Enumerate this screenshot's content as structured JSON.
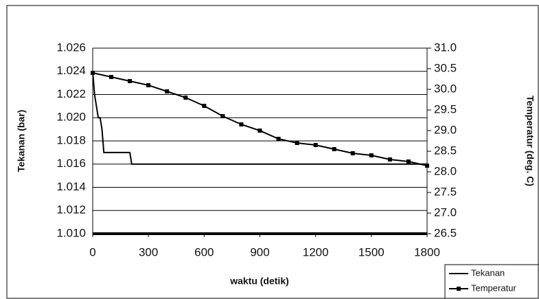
{
  "chart_data": {
    "type": "line",
    "xlabel": "waktu (detik)",
    "ylabel": "Tekanan (bar)",
    "y2label": "Temperatur (deg. C)",
    "xlim": [
      0,
      1800
    ],
    "xticks": [
      0,
      300,
      600,
      900,
      1200,
      1500,
      1800
    ],
    "ylim": [
      1.01,
      1.026
    ],
    "yticks": [
      {
        "value": 1.01,
        "label": "1.010"
      },
      1.012,
      1.014,
      1.016,
      1.018,
      {
        "value": 1.02,
        "label": "1.020"
      },
      1.022,
      1.024,
      1.026
    ],
    "y2lim": [
      26.5,
      31.0
    ],
    "y2ticks": [
      26.5,
      {
        "value": 27.0,
        "label": "27.0"
      },
      27.5,
      {
        "value": 28.0,
        "label": "28.0"
      },
      28.5,
      {
        "value": 29.0,
        "label": "29.0"
      },
      29.5,
      {
        "value": 30.0,
        "label": "30.0"
      },
      30.5,
      {
        "value": 31.0,
        "label": "31.0"
      }
    ],
    "grid": true,
    "legend": "lower right",
    "series": [
      {
        "name": "Tekanan",
        "color": "#000000",
        "marker": "none",
        "x": [
          0,
          10,
          20,
          30,
          40,
          50,
          60,
          200,
          210,
          1800
        ],
        "values": [
          1.024,
          1.022,
          1.021,
          1.02,
          1.02,
          1.019,
          1.017,
          1.017,
          1.016,
          1.016
        ]
      },
      {
        "name": "Temperatur",
        "color": "#000000",
        "marker": "square",
        "axis": "y2",
        "x": [
          0,
          100,
          200,
          300,
          400,
          500,
          600,
          700,
          800,
          900,
          1000,
          1100,
          1200,
          1300,
          1400,
          1500,
          1600,
          1700,
          1800
        ],
        "values": [
          30.4,
          30.3,
          30.2,
          30.1,
          29.95,
          29.8,
          29.6,
          29.35,
          29.15,
          29.0,
          28.8,
          28.7,
          28.65,
          28.55,
          28.45,
          28.4,
          28.3,
          28.25,
          28.15
        ]
      }
    ]
  }
}
